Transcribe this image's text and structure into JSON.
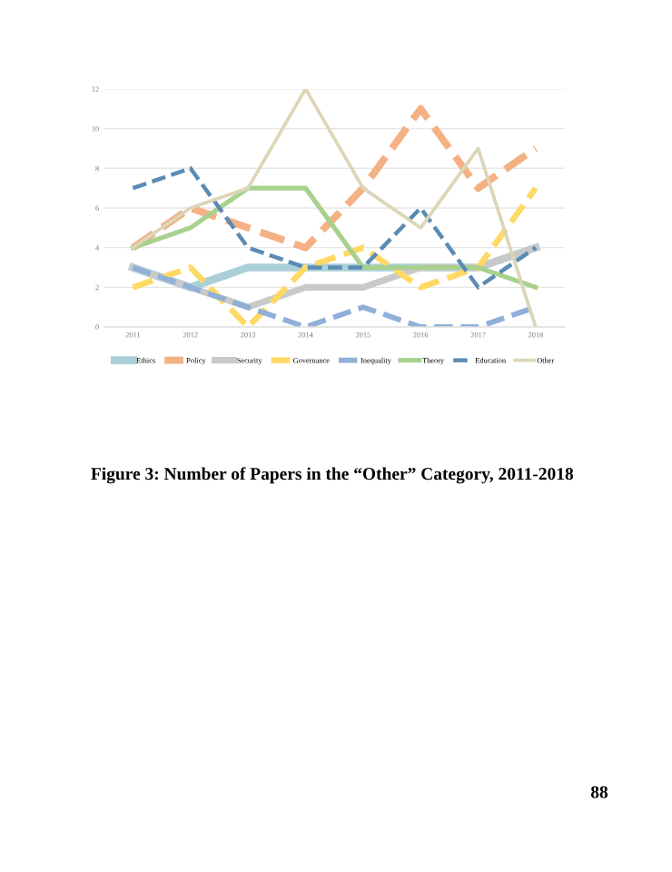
{
  "chart_data": {
    "type": "line",
    "categories": [
      "2011",
      "2012",
      "2013",
      "2014",
      "2015",
      "2016",
      "2017",
      "2018"
    ],
    "series": [
      {
        "name": "Ethics",
        "color": "#a9cfd8",
        "line_style": "solid",
        "values": [
          3,
          2,
          3,
          3,
          3,
          3,
          3,
          4
        ]
      },
      {
        "name": "Policy",
        "color": "#f4b183",
        "line_style": "dashed",
        "values": [
          4,
          6,
          5,
          4,
          7,
          11,
          7,
          9
        ]
      },
      {
        "name": "Security",
        "color": "#c9c9c9",
        "line_style": "solid",
        "values": [
          3,
          2,
          1,
          2,
          2,
          3,
          3,
          4
        ]
      },
      {
        "name": "Governance",
        "color": "#ffd966",
        "line_style": "dashed",
        "values": [
          2,
          3,
          0,
          3,
          4,
          2,
          3,
          7
        ]
      },
      {
        "name": "Inequality",
        "color": "#8fb0d8",
        "line_style": "dashed",
        "values": [
          3,
          2,
          1,
          0,
          1,
          0,
          0,
          1
        ]
      },
      {
        "name": "Theory",
        "color": "#a9d18e",
        "line_style": "solid",
        "values": [
          4,
          5,
          7,
          7,
          3,
          3,
          3,
          2
        ]
      },
      {
        "name": "Education",
        "color": "#5b8bb5",
        "line_style": "dashed",
        "values": [
          7,
          8,
          4,
          3,
          3,
          6,
          2,
          4
        ]
      },
      {
        "name": "Other",
        "color": "#dcd6b8",
        "line_style": "solid",
        "values": [
          4,
          6,
          7,
          12,
          7,
          5,
          9,
          0
        ]
      }
    ],
    "ylim": [
      0,
      12
    ],
    "yticks": [
      0,
      2,
      4,
      6,
      8,
      10,
      12
    ],
    "grid": "y",
    "legend": "bottom",
    "marker": "none",
    "annotations": [
      "Figure 3: Number of Papers in the “Other” Category, 2011-2018",
      "88"
    ]
  }
}
